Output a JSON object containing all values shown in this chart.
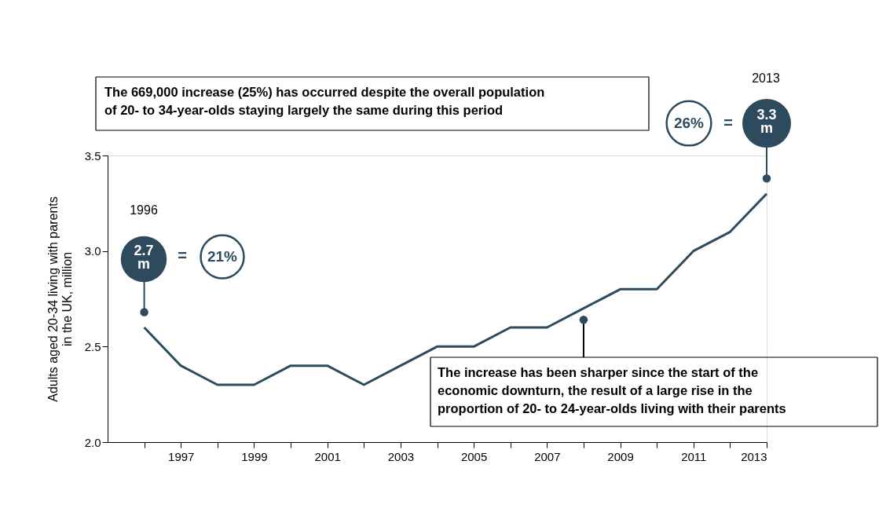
{
  "chart_data": {
    "type": "line",
    "ylabel": "Adults aged 20-34 living with parents\nin the UK, million",
    "x": [
      1996,
      1997,
      1998,
      1999,
      2000,
      2001,
      2002,
      2003,
      2004,
      2005,
      2006,
      2007,
      2008,
      2009,
      2010,
      2011,
      2012,
      2013
    ],
    "series": [
      {
        "color": "#2d4b5c",
        "values": [
          2.6,
          2.4,
          2.3,
          2.3,
          2.4,
          2.4,
          2.3,
          2.4,
          2.5,
          2.5,
          2.6,
          2.6,
          2.7,
          2.8,
          2.8,
          3.0,
          3.1,
          3.3
        ]
      }
    ],
    "xlim": [
      1995,
      2013
    ],
    "xticks": [
      {
        "value": 1996,
        "label": null
      },
      1997,
      {
        "value": 1998,
        "label": null
      },
      1999,
      {
        "value": 2000,
        "label": null
      },
      2001,
      {
        "value": 2002,
        "label": null
      },
      2003,
      {
        "value": 2004,
        "label": null
      },
      2005,
      {
        "value": 2006,
        "label": null
      },
      2007,
      {
        "value": 2008,
        "label": null
      },
      2009,
      {
        "value": 2010,
        "label": null
      },
      2011,
      {
        "value": 2012,
        "label": null
      },
      2013
    ],
    "ylim": [
      2.0,
      3.5
    ],
    "yticks": [
      {
        "value": 2,
        "label": "2.0"
      },
      {
        "value": 2.5,
        "label": "2.5"
      },
      {
        "value": 3,
        "label": "3.0"
      },
      {
        "value": 3.5,
        "label": "3.5"
      }
    ],
    "grid": false,
    "marker": "none",
    "line_style": "solid",
    "annotations": [
      "The 669,000 increase (25%) has occurred despite the overall population\nof 20- to 34-year-olds staying largely the same during this period",
      {
        "text": "The increase has been sharper since the start of the\neconomic downturn, the result of a large rise in the\nproportion of 20- to 24-year-olds living with their parents",
        "x": 2008,
        "y": 2.64
      },
      "1996",
      {
        "text": "2.7\nm",
        "x": 1996,
        "y": 2.68
      },
      "=",
      "21%",
      "2013",
      {
        "text": "3.3\nm",
        "x": 2013,
        "y": 3.38
      },
      "=",
      "26%"
    ]
  }
}
